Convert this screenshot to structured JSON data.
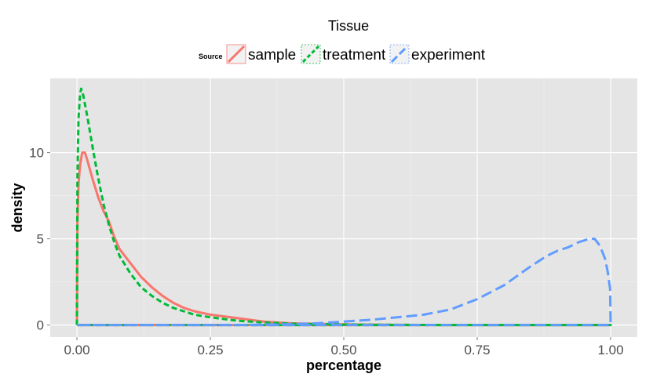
{
  "chart_data": {
    "type": "line",
    "subtype": "density",
    "title": "Tissue",
    "xlabel": "percentage",
    "ylabel": "density",
    "xlim": [
      -0.05,
      1.05
    ],
    "ylim": [
      -0.7,
      14.3
    ],
    "x_ticks": [
      0.0,
      0.25,
      0.5,
      0.75,
      1.0
    ],
    "x_tick_labels": [
      "0.00",
      "0.25",
      "0.50",
      "0.75",
      "1.00"
    ],
    "y_ticks": [
      0,
      5,
      10
    ],
    "y_tick_labels": [
      "0",
      "5",
      "10"
    ],
    "grid": true,
    "legend": {
      "title": "Source",
      "placement": "top"
    },
    "series": [
      {
        "name": "sample",
        "color": "#F8766D",
        "linestyle": "solid",
        "points": [
          [
            0.0,
            0.0
          ],
          [
            0.001,
            6.0
          ],
          [
            0.003,
            8.2
          ],
          [
            0.006,
            9.3
          ],
          [
            0.01,
            10.0
          ],
          [
            0.015,
            10.0
          ],
          [
            0.02,
            9.5
          ],
          [
            0.03,
            8.4
          ],
          [
            0.04,
            7.4
          ],
          [
            0.05,
            6.6
          ],
          [
            0.06,
            6.0
          ],
          [
            0.07,
            5.1
          ],
          [
            0.08,
            4.4
          ],
          [
            0.1,
            3.6
          ],
          [
            0.12,
            2.8
          ],
          [
            0.14,
            2.2
          ],
          [
            0.16,
            1.7
          ],
          [
            0.18,
            1.3
          ],
          [
            0.2,
            1.0
          ],
          [
            0.22,
            0.8
          ],
          [
            0.25,
            0.6
          ],
          [
            0.3,
            0.4
          ],
          [
            0.35,
            0.2
          ],
          [
            0.4,
            0.1
          ],
          [
            0.5,
            0.04
          ],
          [
            0.6,
            0.01
          ],
          [
            0.7,
            0.0
          ],
          [
            1.0,
            0.0
          ],
          [
            0.0,
            0.0
          ]
        ]
      },
      {
        "name": "treatment",
        "color": "#00BA38",
        "linestyle": "dashed",
        "points": [
          [
            0.0,
            0.0
          ],
          [
            0.001,
            8.5
          ],
          [
            0.003,
            12.0
          ],
          [
            0.006,
            13.4
          ],
          [
            0.008,
            13.7
          ],
          [
            0.012,
            13.3
          ],
          [
            0.02,
            12.0
          ],
          [
            0.03,
            10.2
          ],
          [
            0.04,
            8.5
          ],
          [
            0.05,
            7.0
          ],
          [
            0.06,
            5.8
          ],
          [
            0.07,
            4.8
          ],
          [
            0.08,
            4.0
          ],
          [
            0.1,
            3.0
          ],
          [
            0.12,
            2.2
          ],
          [
            0.14,
            1.7
          ],
          [
            0.16,
            1.3
          ],
          [
            0.18,
            1.0
          ],
          [
            0.2,
            0.8
          ],
          [
            0.22,
            0.6
          ],
          [
            0.25,
            0.45
          ],
          [
            0.3,
            0.25
          ],
          [
            0.35,
            0.15
          ],
          [
            0.4,
            0.08
          ],
          [
            0.5,
            0.03
          ],
          [
            0.6,
            0.01
          ],
          [
            0.7,
            0.0
          ],
          [
            1.0,
            0.0
          ],
          [
            0.0,
            0.0
          ]
        ]
      },
      {
        "name": "experiment",
        "color": "#619CFF",
        "linestyle": "longdash",
        "points": [
          [
            0.0,
            0.0
          ],
          [
            0.3,
            0.0
          ],
          [
            0.4,
            0.05
          ],
          [
            0.45,
            0.1
          ],
          [
            0.5,
            0.2
          ],
          [
            0.55,
            0.3
          ],
          [
            0.6,
            0.45
          ],
          [
            0.65,
            0.6
          ],
          [
            0.7,
            0.9
          ],
          [
            0.75,
            1.5
          ],
          [
            0.8,
            2.3
          ],
          [
            0.85,
            3.4
          ],
          [
            0.88,
            4.0
          ],
          [
            0.9,
            4.3
          ],
          [
            0.92,
            4.5
          ],
          [
            0.94,
            4.8
          ],
          [
            0.96,
            5.0
          ],
          [
            0.97,
            5.0
          ],
          [
            0.98,
            4.6
          ],
          [
            0.99,
            3.8
          ],
          [
            0.995,
            3.0
          ],
          [
            0.999,
            2.1
          ],
          [
            1.0,
            0.0
          ],
          [
            0.0,
            0.0
          ]
        ]
      }
    ]
  }
}
